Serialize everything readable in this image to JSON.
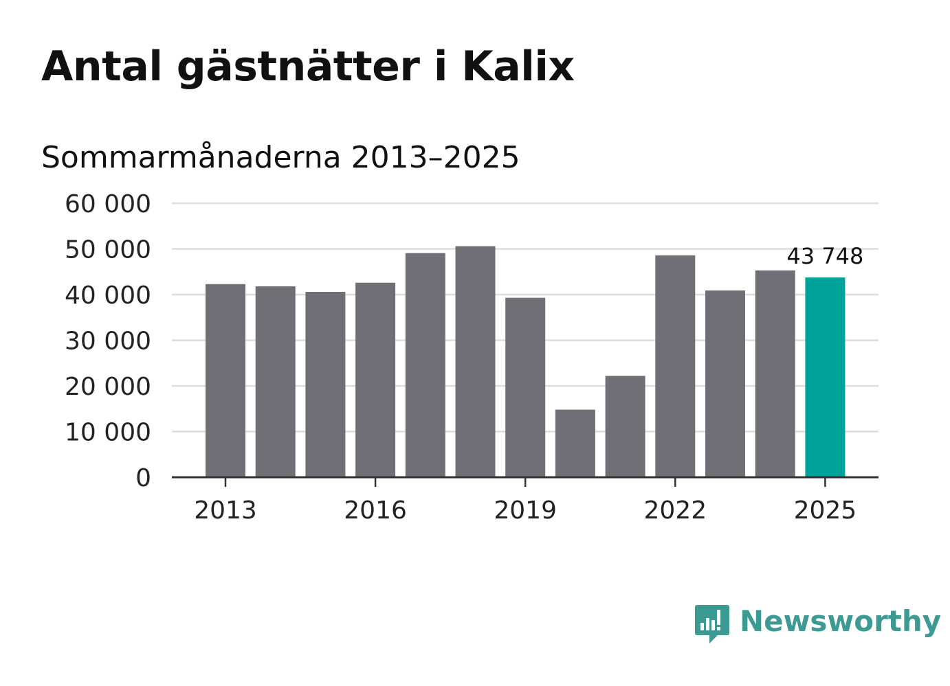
{
  "header": {
    "title": "Antal gästnätter i Kalix",
    "subtitle": "Sommarmånaderna 2013–2025"
  },
  "brand": {
    "name": "Newsworthy",
    "logo_icon": "newsworthy-chart-bubble-icon",
    "color": "#3d9a92"
  },
  "colors": {
    "bar": "#706f75",
    "highlight": "#00a39a",
    "grid": "#dddddd",
    "axis": "#333333"
  },
  "chart_data": {
    "type": "bar",
    "categories": [
      "2013",
      "2014",
      "2015",
      "2016",
      "2017",
      "2018",
      "2019",
      "2020",
      "2021",
      "2022",
      "2023",
      "2024",
      "2025"
    ],
    "values": [
      42300,
      41800,
      40600,
      42600,
      49100,
      50600,
      39300,
      14800,
      22200,
      48600,
      40900,
      45300,
      43748
    ],
    "highlight_index": 12,
    "data_labels": [
      {
        "index": 12,
        "text": "43 748"
      }
    ],
    "x_tick_labels": [
      "2013",
      "2016",
      "2019",
      "2022",
      "2025"
    ],
    "y_ticks": [
      0,
      10000,
      20000,
      30000,
      40000,
      50000,
      60000
    ],
    "y_tick_labels": [
      "0",
      "10 000",
      "20 000",
      "30 000",
      "40 000",
      "50 000",
      "60 000"
    ],
    "ylim": [
      0,
      60000
    ],
    "grid": true,
    "legend": "none"
  }
}
